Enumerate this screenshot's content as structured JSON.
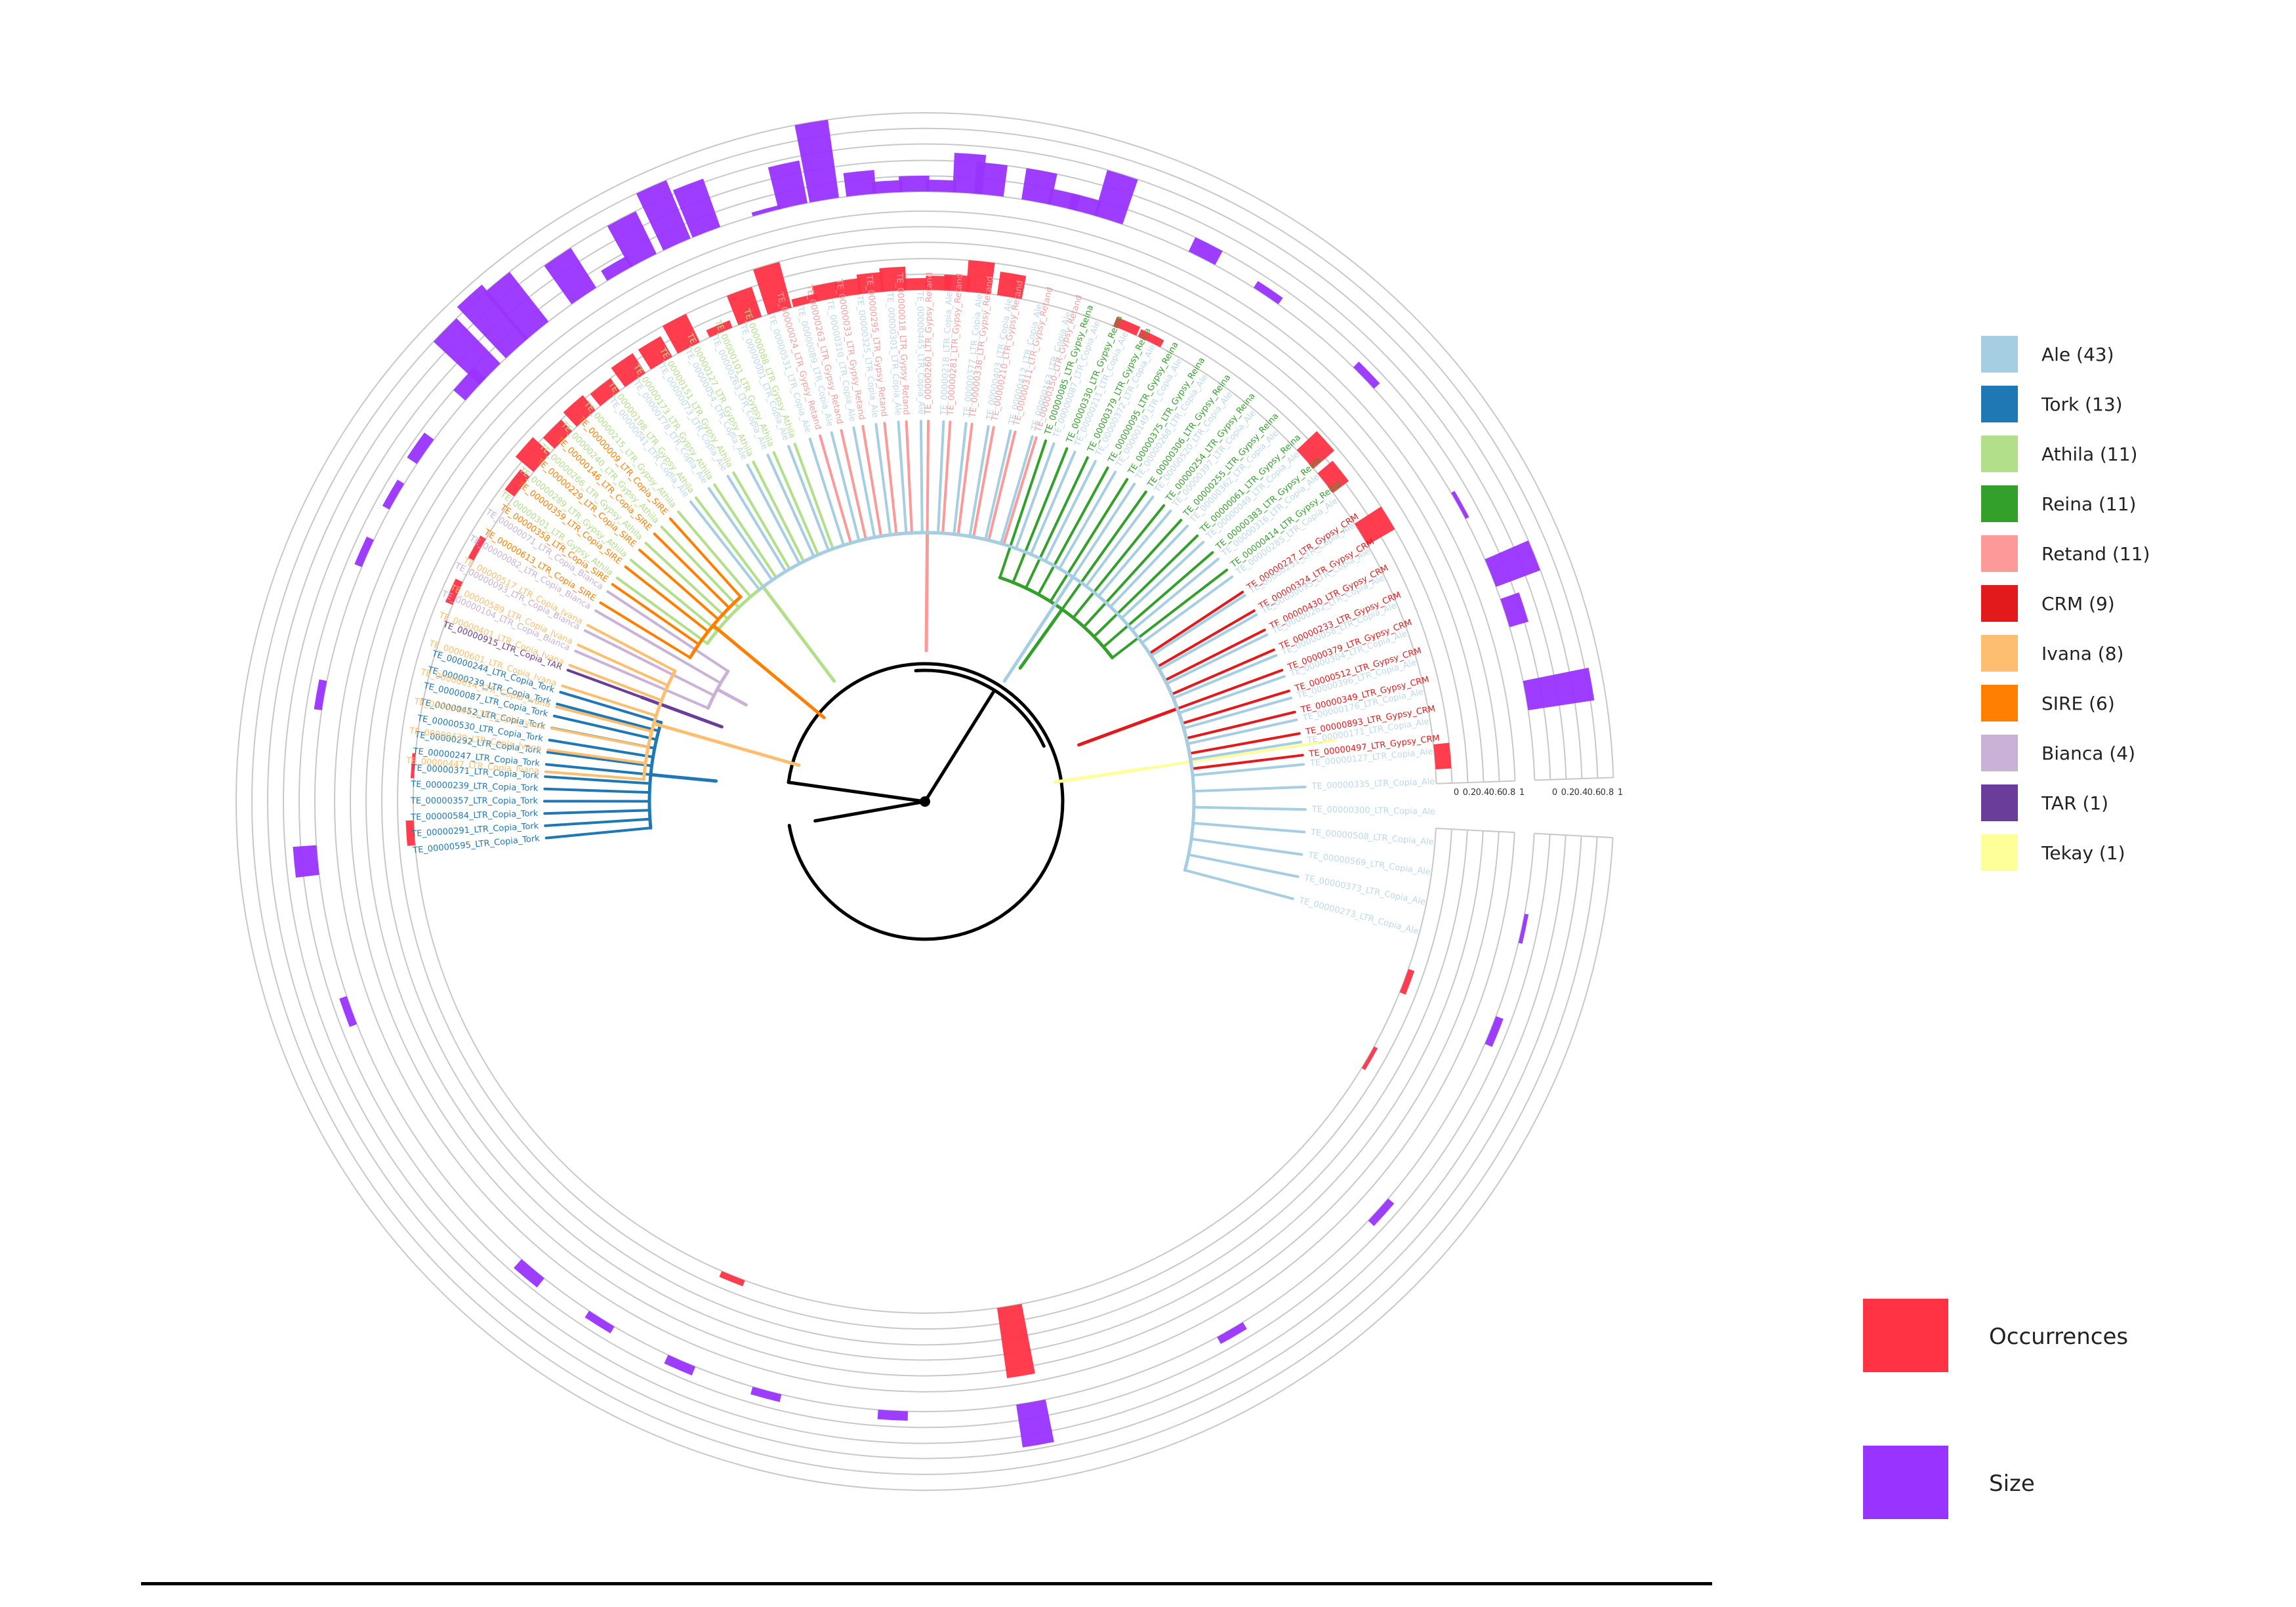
{
  "diagram": {
    "families": [
      {
        "name": "Ale",
        "count": 43,
        "label": "Ale (43)",
        "color": "#a6cee3",
        "label_color": "#bcd9ea"
      },
      {
        "name": "Tork",
        "count": 13,
        "label": "Tork (13)",
        "color": "#1f78b4",
        "label_color": "#1f78b4"
      },
      {
        "name": "Athila",
        "count": 11,
        "label": "Athila (11)",
        "color": "#b2df8a",
        "label_color": "#b2df8a"
      },
      {
        "name": "Reina",
        "count": 11,
        "label": "Reina (11)",
        "color": "#33a02c",
        "label_color": "#33a02c"
      },
      {
        "name": "Retand",
        "count": 11,
        "label": "Retand (11)",
        "color": "#fb9a99",
        "label_color": "#f2a1a0"
      },
      {
        "name": "CRM",
        "count": 9,
        "label": "CRM (9)",
        "color": "#e31a1c",
        "label_color": "#e31a1c"
      },
      {
        "name": "Ivana",
        "count": 8,
        "label": "Ivana (8)",
        "color": "#fdbf6f",
        "label_color": "#fdbf6f"
      },
      {
        "name": "SIRE",
        "count": 6,
        "label": "SIRE (6)",
        "color": "#ff7f00",
        "label_color": "#ff7f00"
      },
      {
        "name": "Bianca",
        "count": 4,
        "label": "Bianca (4)",
        "color": "#cab2d6",
        "label_color": "#cab2d6"
      },
      {
        "name": "TAR",
        "count": 1,
        "label": "TAR (1)",
        "color": "#6a3d9a",
        "label_color": "#6a3d9a"
      },
      {
        "name": "Tekay",
        "count": 1,
        "label": "Tekay (1)",
        "color": "#ffff99",
        "label_color": "#e6e68a"
      }
    ],
    "leaf_groups": [
      {
        "family": "Tekay",
        "start_deg": -8.5,
        "step": 0,
        "labels": []
      },
      {
        "family": "CRM",
        "start_deg": -7.0,
        "step": -3.3,
        "labels": [
          "TE_00000497_LTR_Gypsy_CRM",
          "TE_00000893_LTR_Gypsy_CRM",
          "TE_00000349_LTR_Gypsy_CRM",
          "TE_00000512_LTR_Gypsy_CRM",
          "TE_00000379_LTR_Gypsy_CRM",
          "TE_00000233_LTR_Gypsy_CRM",
          "TE_00000430_LTR_Gypsy_CRM",
          "TE_00000324_LTR_Gypsy_CRM",
          "TE_00000227_LTR_Gypsy_CRM"
        ]
      },
      {
        "family": "Reina",
        "start_deg": -37.5,
        "step": -3.4,
        "labels": [
          "TE_00000414_LTR_Gypsy_Reina",
          "TE_00000383_LTR_Gypsy_Reina",
          "TE_00000061_LTR_Gypsy_Reina",
          "TE_00000255_LTR_Gypsy_Reina",
          "TE_00000254_LTR_Gypsy_Reina",
          "TE_00000306_LTR_Gypsy_Reina",
          "TE_00000375_LTR_Gypsy_Reina",
          "TE_00000095_LTR_Gypsy_Reina",
          "TE_00000379_LTR_Gypsy_Reina",
          "TE_00000330_LTR_Gypsy_Reina",
          "TE_00000085_LTR_Gypsy_Reina"
        ]
      },
      {
        "family": "Retand",
        "start_deg": -73.0,
        "step": -3.3,
        "labels": [
          "TE_00000350_LTR_Gypsy_Retand",
          "TE_00000311_LTR_Gypsy_Retand",
          "TE_00000210_LTR_Gypsy_Retand",
          "TE_00000338_LTR_Gypsy_Retand",
          "TE_00000281_LTR_Gypsy_Retand",
          "TE_00000260_LTR_Gypsy_Retand",
          "TE_00000018_LTR_Gypsy_Retand",
          "TE_00000295_LTR_Gypsy_Retand",
          "TE_00000033_LTR_Gypsy_Retand",
          "TE_00000263_LTR_Gypsy_Retand",
          "TE_00000024_LTR_Gypsy_Retand"
        ]
      },
      {
        "family": "Athila",
        "start_deg": -110.0,
        "step": -3.4,
        "labels": [
          "TE_00000088_LTR_Gypsy_Athila",
          "TE_00000101_LTR_Gypsy_Athila",
          "TE_00000127_LTR_Gypsy_Athila",
          "TE_00000151_LTR_Gypsy_Athila",
          "TE_00000173_LTR_Gypsy_Athila",
          "TE_00000198_LTR_Gypsy_Athila",
          "TE_00000215_LTR_Gypsy_Athila",
          "TE_00000240_LTR_Gypsy_Athila",
          "TE_00000266_LTR_Gypsy_Athila",
          "TE_00000289_LTR_Gypsy_Athila",
          "TE_00000301_LTR_Gypsy_Athila"
        ]
      },
      {
        "family": "Bianca",
        "start_deg": -146.5,
        "step": -3.4,
        "labels": [
          "TE_00000071_LTR_Copia_Bianca",
          "TE_00000082_LTR_Copia_Bianca",
          "TE_00000093_LTR_Copia_Bianca",
          "TE_00000104_LTR_Copia_Bianca"
        ]
      },
      {
        "family": "TAR",
        "start_deg": -159.8,
        "step": 0,
        "labels": [
          "TE_00000915_LTR_Copia_TAR"
        ]
      },
      {
        "family": "Tork",
        "start_deg": -163.3,
        "step": -1.85,
        "labels": [
          "TE_00000244_LTR_Copia_Tork",
          "TE_00000239_LTR_Copia_Tork",
          "TE_00000087_LTR_Copia_Tork",
          "TE_00000452_LTR_Copia_Tork",
          "TE_00000530_LTR_Copia_Tork",
          "TE_00000292_LTR_Copia_Tork",
          "TE_00000247_LTR_Copia_Tork",
          "TE_00000371_LTR_Copia_Tork",
          "TE_00000239_LTR_Copia_Tork",
          "TE_00000357_LTR_Copia_Tork",
          "TE_00000584_LTR_Copia_Tork",
          "TE_00000291_LTR_Copia_Tork",
          "TE_00000595_LTR_Copia_Tork"
        ]
      },
      {
        "family": "Ivana",
        "start_deg": 184.5,
        "step": 3.3,
        "labels": [
          "TE_00000447_LTR_Copia_Ivana",
          "TE_00000439_LTR_Copia_Ivana",
          "TE_00000464_LTR_Copia_Ivana",
          "TE_00000614_LTR_Copia_Ivana",
          "TE_00000601_LTR_Copia_Ivana",
          "TE_00000401_LTR_Copia_Ivana",
          "TE_00000589_LTR_Copia_Ivana",
          "TE_00000517_LTR_Copia_Ivana"
        ]
      },
      {
        "family": "SIRE",
        "start_deg": 211.5,
        "step": 3.3,
        "labels": [
          "TE_00000613_LTR_Copia_SIRE",
          "TE_00000358_LTR_Copia_SIRE",
          "TE_00000359_LTR_Copia_SIRE",
          "TE_00000229_LTR_Copia_SIRE",
          "TE_00000146_LTR_Copia_SIRE",
          "TE_00000009_LTR_Copia_SIRE"
        ]
      },
      {
        "family": "Ale",
        "start_deg": 232.0,
        "step": 3.4,
        "labels": [
          "TE_00000041_LTR_Copia_Ale",
          "TE_00000178_LTR_Copia_Ale",
          "TE_00000073_LTR_Copia_Ale",
          "TE_00000054_LTR_Copia_Ale",
          "TE_00000263_LTR_Copia_Ale",
          "TE_00000001_LTR_Copia_Ale",
          "TE_00000531_LTR_Copia_Ale",
          "TE_00000089_LTR_Copia_Ale",
          "TE_00000310_LTR_Copia_Ale",
          "TE_00000325_LTR_Copia_Ale",
          "TE_00000301_LTR_Copia_Ale",
          "TE_00000445_LTR_Copia_Ale",
          "TE_00000218_LTR_Copia_Ale",
          "TE_00000377_LTR_Copia_Ale",
          "TE_00000403_LTR_Copia_Ale",
          "TE_00000412_LTR_Copia_Ale",
          "TE_00000163_LTR_Copia_Ale",
          "TE_00000087_LTR_Copia_Ale",
          "TE_00000211_LTR_Copia_Ale",
          "TE_00000372_LTR_Copia_Ale",
          "TE_00000149_LTR_Copia_Ale",
          "TE_00000268_LTR_Copia_Ale",
          "TE_00000520_LTR_Copia_Ale",
          "TE_00000397_LTR_Copia_Ale",
          "TE_00000362_LTR_Copia_Ale",
          "TE_00000049_LTR_Copia_Ale",
          "TE_00000316_LTR_Copia_Ale",
          "TE_00000285_LTR_Copia_Ale",
          "TE_00000251_LTR_Copia_Ale",
          "TE_00000095_LTR_Copia_Ale",
          "TE_00000262_LTR_Copia_Ale",
          "TE_00000058_LTR_Copia_Ale",
          "TE_00000304_LTR_Copia_Ale",
          "TE_00000396_LTR_Copia_Ale",
          "TE_00000176_LTR_Copia_Ale",
          "TE_00000171_LTR_Copia_Ale",
          "TE_00000127_LTR_Copia_Ale",
          "TE_00000335_LTR_Copia_Ale",
          "TE_00000300_LTR_Copia_Ale",
          "TE_00000508_LTR_Copia_Ale",
          "TE_00000569_LTR_Copia_Ale",
          "TE_00000373_LTR_Copia_Ale",
          "TE_00000273_LTR_Copia_Ale"
        ]
      }
    ],
    "rings": {
      "occurrences": {
        "name": "Occurrences",
        "color": "#ff3344",
        "values": [
          {
            "deg": -42.0,
            "v": 0.35
          },
          {
            "deg": -38.5,
            "v": 0.25
          },
          {
            "deg": -31.5,
            "v": 0.4
          },
          {
            "deg": -5.0,
            "v": 0.2
          },
          {
            "deg": -64.0,
            "v": 0.1
          },
          {
            "deg": -67.0,
            "v": 0.12
          },
          {
            "deg": -80.5,
            "v": 0.3
          },
          {
            "deg": -84.0,
            "v": 0.4
          },
          {
            "deg": -86.5,
            "v": 0.2
          },
          {
            "deg": -88.5,
            "v": 0.18
          },
          {
            "deg": -91.0,
            "v": 0.15
          },
          {
            "deg": -93.5,
            "v": 0.3
          },
          {
            "deg": -96.0,
            "v": 0.25
          },
          {
            "deg": -98.5,
            "v": 0.2
          },
          {
            "deg": -101.0,
            "v": 0.2
          },
          {
            "deg": -103.5,
            "v": 0.1
          },
          {
            "deg": -106.5,
            "v": 0.6
          },
          {
            "deg": -110.0,
            "v": 0.4
          },
          {
            "deg": -113.5,
            "v": 0.1
          },
          {
            "deg": -117.5,
            "v": 0.4
          },
          {
            "deg": -121.0,
            "v": 0.3
          },
          {
            "deg": -124.5,
            "v": 0.3
          },
          {
            "deg": -128.0,
            "v": 0.2
          },
          {
            "deg": -131.5,
            "v": 0.25
          },
          {
            "deg": -135.0,
            "v": 0.2
          },
          {
            "deg": -138.5,
            "v": 0.3
          },
          {
            "deg": -142.0,
            "v": 0.15
          },
          {
            "deg": -150.5,
            "v": 0.08
          },
          {
            "deg": -156.0,
            "v": 0.1
          },
          {
            "deg": -176.0,
            "v": 0.04
          },
          {
            "deg": 176.5,
            "v": 0.1
          },
          {
            "deg": 112.0,
            "v": 0.08
          },
          {
            "deg": 80.5,
            "v": 0.9
          },
          {
            "deg": 20.5,
            "v": 0.08
          },
          {
            "deg": 30.0,
            "v": 0.05
          }
        ]
      },
      "size": {
        "name": "Size",
        "color": "#9933ff",
        "values": [
          {
            "deg": -10.0,
            "v": 0.85
          },
          {
            "deg": -18.0,
            "v": 0.25
          },
          {
            "deg": -22.0,
            "v": 0.6
          },
          {
            "deg": -29.0,
            "v": 0.05
          },
          {
            "deg": -44.0,
            "v": 0.1
          },
          {
            "deg": -56.0,
            "v": 0.1
          },
          {
            "deg": -63.0,
            "v": 0.2
          },
          {
            "deg": -72.5,
            "v": 0.6
          },
          {
            "deg": -75.0,
            "v": 0.2
          },
          {
            "deg": -77.0,
            "v": 0.2
          },
          {
            "deg": -79.5,
            "v": 0.4
          },
          {
            "deg": -84.0,
            "v": 0.4
          },
          {
            "deg": -86.0,
            "v": 0.5
          },
          {
            "deg": -88.5,
            "v": 0.15
          },
          {
            "deg": -91.0,
            "v": 0.2
          },
          {
            "deg": -93.5,
            "v": 0.15
          },
          {
            "deg": -96.0,
            "v": 0.3
          },
          {
            "deg": -99.5,
            "v": 1.0
          },
          {
            "deg": -102.5,
            "v": 0.55
          },
          {
            "deg": -105.0,
            "v": 0.05
          },
          {
            "deg": -111.0,
            "v": 0.65
          },
          {
            "deg": -114.0,
            "v": 0.8
          },
          {
            "deg": -117.5,
            "v": 0.6
          },
          {
            "deg": -120.0,
            "v": 0.15
          },
          {
            "deg": -124.0,
            "v": 0.6
          },
          {
            "deg": -129.5,
            "v": 0.8
          },
          {
            "deg": -132.0,
            "v": 0.9
          },
          {
            "deg": -135.5,
            "v": 0.8
          },
          {
            "deg": -137.5,
            "v": 0.2
          },
          {
            "deg": -145.0,
            "v": 0.15
          },
          {
            "deg": -150.0,
            "v": 0.1
          },
          {
            "deg": -156.0,
            "v": 0.1
          },
          {
            "deg": -170.0,
            "v": 0.1
          },
          {
            "deg": 174.5,
            "v": 0.3
          },
          {
            "deg": 160.0,
            "v": 0.1
          },
          {
            "deg": 130.0,
            "v": 0.15
          },
          {
            "deg": 122.0,
            "v": 0.1
          },
          {
            "deg": 113.5,
            "v": 0.12
          },
          {
            "deg": 105.0,
            "v": 0.1
          },
          {
            "deg": 93.0,
            "v": 0.12
          },
          {
            "deg": 80.0,
            "v": 0.55
          },
          {
            "deg": 60.0,
            "v": 0.1
          },
          {
            "deg": 42.0,
            "v": 0.1
          },
          {
            "deg": 22.0,
            "v": 0.1
          },
          {
            "deg": 12.0,
            "v": 0.05
          }
        ]
      }
    },
    "axes": {
      "occurrences_ticks": [
        "0",
        "0.2",
        "0.4",
        "0.6",
        "0.8",
        "1"
      ],
      "size_ticks": [
        "0",
        "0.2",
        "0.4",
        "0.6",
        "0.8",
        "1"
      ]
    },
    "metric_legend": [
      {
        "name": "Occurrences",
        "color": "#ff3344"
      },
      {
        "name": "Size",
        "color": "#9933ff"
      }
    ]
  }
}
